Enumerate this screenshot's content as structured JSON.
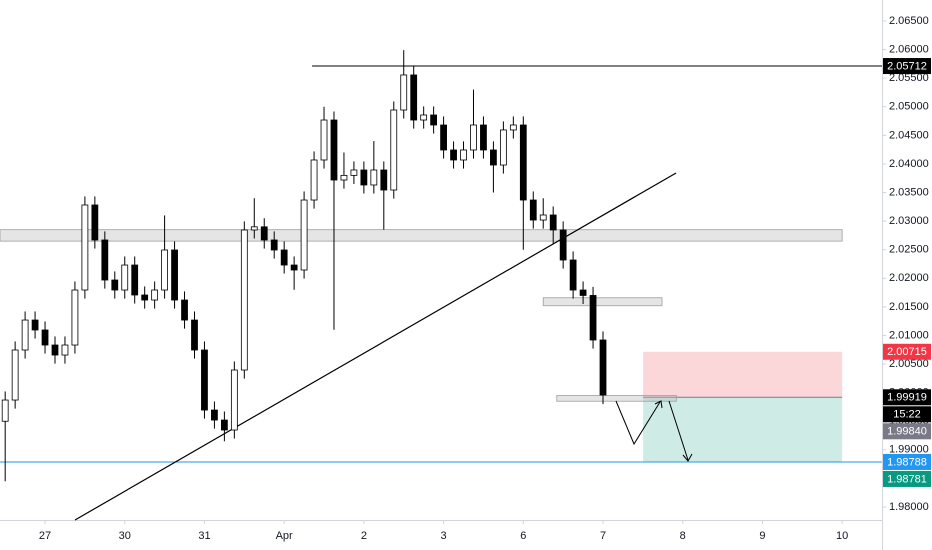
{
  "chart_data": {
    "type": "candlestick",
    "x": [
      -0.5,
      -0.375,
      -0.25,
      -0.125,
      0,
      0.125,
      0.25,
      0.375,
      0.5,
      0.625,
      0.75,
      0.875,
      1,
      1.125,
      1.25,
      1.375,
      1.5,
      1.625,
      1.75,
      1.875,
      2,
      2.125,
      2.25,
      2.375,
      2.5,
      2.625,
      2.75,
      2.875,
      3,
      3.125,
      3.25,
      3.375,
      3.5,
      3.625,
      3.75,
      3.875,
      4,
      4.125,
      4.25,
      4.375,
      4.5,
      4.625,
      4.75,
      4.875,
      5,
      5.125,
      5.25,
      5.375,
      5.5,
      5.625,
      5.75,
      5.875,
      6,
      6.125,
      6.25,
      6.375,
      6.5,
      6.625,
      6.75,
      6.875,
      7
    ],
    "open": [
      1.995,
      1.99871,
      2.00746,
      2.0127,
      2.01096,
      2.00833,
      2.00658,
      2.00833,
      2.01795,
      2.03282,
      2.0267,
      2.0197,
      2.01795,
      2.02232,
      2.01708,
      2.0162,
      2.01795,
      2.02495,
      2.0162,
      2.0127,
      2.00746,
      1.99696,
      1.99521,
      1.99347,
      2.00396,
      2.02845,
      2.029,
      2.0267,
      2.02495,
      2.02232,
      2.02145,
      2.03369,
      2.04069,
      2.04768,
      2.03719,
      2.038,
      2.03894,
      2.03632,
      2.03894,
      2.03544,
      2.04943,
      2.05556,
      2.04768,
      2.04856,
      2.04681,
      2.04244,
      2.04069,
      2.04244,
      2.04681,
      2.04244,
      2.03981,
      2.04594,
      2.04681,
      2.03369,
      2.03019,
      2.03107,
      2.02845,
      2.0232,
      2.01795,
      2.017,
      2.00921
    ],
    "high": [
      2.00021,
      2.00896,
      2.0142,
      2.0142,
      2.01246,
      2.00983,
      2.00983,
      2.01945,
      2.03432,
      2.03432,
      2.0282,
      2.0212,
      2.02382,
      2.02382,
      2.01858,
      2.01945,
      2.031,
      2.02645,
      2.0177,
      2.0142,
      2.00896,
      1.99846,
      1.99671,
      2.00546,
      2.02995,
      2.034,
      2.0305,
      2.0282,
      2.02645,
      2.02382,
      2.03519,
      2.04219,
      2.05,
      2.04918,
      2.042,
      2.04044,
      2.04044,
      2.044,
      2.04044,
      2.05093,
      2.0599,
      2.05706,
      2.05006,
      2.05006,
      2.04831,
      2.04394,
      2.04394,
      2.053,
      2.04831,
      2.04394,
      2.04744,
      2.04831,
      2.04831,
      2.03519,
      2.034,
      2.03257,
      2.02995,
      2.0247,
      2.01945,
      2.0185,
      2.01071
    ],
    "low": [
      1.9845,
      1.99721,
      2.00596,
      2.00946,
      2.00683,
      2.00508,
      2.00508,
      2.00683,
      2.01645,
      2.0252,
      2.0182,
      2.01645,
      2.01645,
      2.01558,
      2.0147,
      2.0147,
      2.01645,
      2.0147,
      2.0112,
      2.00596,
      1.99546,
      1.99371,
      1.9915,
      1.99197,
      2.00246,
      2.02695,
      2.0252,
      2.02345,
      2.02082,
      2.018,
      2.01995,
      2.03219,
      2.03919,
      2.011,
      2.03569,
      2.0365,
      2.03482,
      2.03482,
      2.0285,
      2.03394,
      2.04793,
      2.04618,
      2.04618,
      2.04531,
      2.04094,
      2.03919,
      2.03919,
      2.04094,
      2.04094,
      2.035,
      2.03831,
      2.04444,
      2.025,
      2.02869,
      2.02869,
      2.026,
      2.0217,
      2.01645,
      2.0155,
      2.00771,
      1.998
    ],
    "close": [
      1.99871,
      2.00746,
      2.0127,
      2.01096,
      2.00833,
      2.00658,
      2.00833,
      2.01795,
      2.03282,
      2.0267,
      2.0197,
      2.01795,
      2.02232,
      2.01708,
      2.0162,
      2.01795,
      2.02495,
      2.0162,
      2.0127,
      2.00746,
      1.99696,
      1.99521,
      1.99347,
      2.00396,
      2.02845,
      2.029,
      2.0267,
      2.02495,
      2.02232,
      2.02145,
      2.03369,
      2.04069,
      2.04768,
      2.03719,
      2.038,
      2.03894,
      2.03632,
      2.03894,
      2.03544,
      2.04943,
      2.05556,
      2.04768,
      2.04856,
      2.04681,
      2.04244,
      2.04069,
      2.04244,
      2.04681,
      2.04244,
      2.03981,
      2.04594,
      2.04681,
      2.03369,
      2.03019,
      2.03107,
      2.02845,
      2.0232,
      2.01795,
      2.017,
      2.00921,
      1.99959
    ],
    "up_color": "#ffffff",
    "down_color": "#000000",
    "wick_color": "#000000",
    "xlim": [
      -0.565,
      10.5
    ],
    "ylim": [
      1.97773,
      2.06867
    ],
    "xticks": [
      {
        "value": 0,
        "label": "27"
      },
      {
        "value": 1,
        "label": "30"
      },
      {
        "value": 2,
        "label": "31"
      },
      {
        "value": 3,
        "label": "Apr"
      },
      {
        "value": 4,
        "label": "2"
      },
      {
        "value": 5,
        "label": "3"
      },
      {
        "value": 6,
        "label": "6"
      },
      {
        "value": 7,
        "label": "7"
      },
      {
        "value": 8,
        "label": "8"
      },
      {
        "value": 9,
        "label": "9"
      },
      {
        "value": 10,
        "label": "10"
      }
    ],
    "yticks": [
      {
        "value": 1.98,
        "label": "1.98000"
      },
      {
        "value": 1.985,
        "label": "1.98500"
      },
      {
        "value": 1.99,
        "label": "1.99000"
      },
      {
        "value": 1.995,
        "label": "1.99500"
      },
      {
        "value": 2.0,
        "label": "2.00000"
      },
      {
        "value": 2.005,
        "label": "2.00500"
      },
      {
        "value": 2.01,
        "label": "2.01000"
      },
      {
        "value": 2.015,
        "label": "2.01500"
      },
      {
        "value": 2.02,
        "label": "2.02000"
      },
      {
        "value": 2.025,
        "label": "2.02500"
      },
      {
        "value": 2.03,
        "label": "2.03000"
      },
      {
        "value": 2.035,
        "label": "2.03500"
      },
      {
        "value": 2.04,
        "label": "2.04000"
      },
      {
        "value": 2.045,
        "label": "2.04500"
      },
      {
        "value": 2.05,
        "label": "2.05000"
      },
      {
        "value": 2.055,
        "label": "2.05500"
      },
      {
        "value": 2.06,
        "label": "2.06000"
      },
      {
        "value": 2.065,
        "label": "2.06500"
      }
    ],
    "horizontal_lines": [
      {
        "value": 2.05712,
        "x_start": 3.35,
        "color": "#000000"
      },
      {
        "value": 1.98788,
        "x_start": -0.565,
        "color": "#2196f3"
      }
    ],
    "zones": [
      {
        "top": 2.0285,
        "bottom": 2.0265,
        "x_start": -0.565,
        "x_end": 10.0
      },
      {
        "top": 2.0166,
        "bottom": 2.0152,
        "x_start": 6.25,
        "x_end": 7.74
      },
      {
        "top": 1.9995,
        "bottom": 1.9985,
        "x_start": 6.42,
        "x_end": 7.92
      }
    ],
    "trendline": {
      "x": [
        0.376,
        7.917
      ],
      "y": [
        1.97773,
        2.03842
      ]
    },
    "position": {
      "x_start": 7.503,
      "x_end": 10.0,
      "stop": 2.00715,
      "entry": 1.99919,
      "target": 1.98788,
      "stop_color": "rgba(242,54,69,0.2)",
      "target_color": "rgba(8,153,129,0.2)"
    },
    "price_labels": [
      {
        "value": 2.05712,
        "label": "2.05712",
        "color": "#000000"
      },
      {
        "value": 2.00715,
        "label": "2.00715",
        "color": "#f23645"
      },
      {
        "value": 1.99919,
        "label": "1.99919",
        "color": "#000000"
      },
      {
        "value": 1.99919,
        "label": "15:22",
        "color": "#000000"
      },
      {
        "value": 1.9984,
        "label": "1.99840",
        "color": "#787b86"
      },
      {
        "value": 1.98788,
        "label": "1.98788",
        "color": "#2196f3"
      },
      {
        "value": 1.98781,
        "label": "1.98781",
        "color": "#089981"
      }
    ]
  }
}
